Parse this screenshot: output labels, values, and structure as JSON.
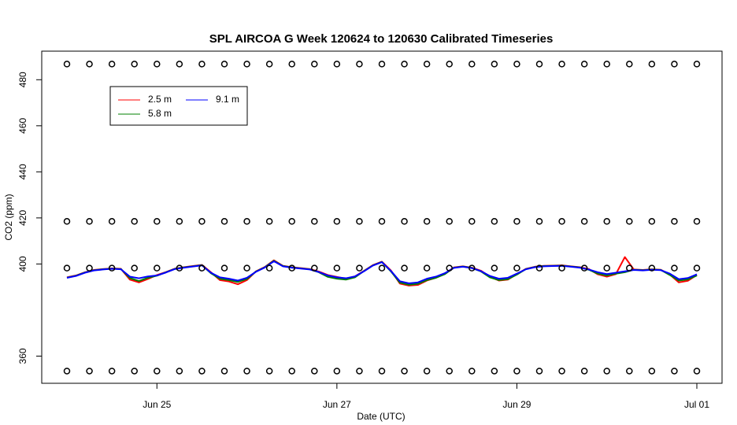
{
  "chart_data": {
    "type": "line",
    "title": "SPL AIRCOA G  Week 120624 to 120630  Calibrated Timeseries",
    "x_label": "Date (UTC)",
    "y_label": "CO2 (ppm)",
    "xlim": [
      23.72,
      31.28
    ],
    "ylim": [
      348.2,
      492.4
    ],
    "xticks": [
      {
        "value": 25,
        "label": "Jun 25"
      },
      {
        "value": 27,
        "label": "Jun 27"
      },
      {
        "value": 29,
        "label": "Jun 29"
      },
      {
        "value": 31,
        "label": "Jul 01"
      }
    ],
    "yticks": [
      360,
      400,
      420,
      440,
      460,
      480
    ],
    "x": [
      24.0,
      24.1,
      24.2,
      24.3,
      24.4,
      24.5,
      24.6,
      24.7,
      24.8,
      24.9,
      25.0,
      25.1,
      25.2,
      25.3,
      25.4,
      25.5,
      25.6,
      25.7,
      25.8,
      25.9,
      26.0,
      26.1,
      26.2,
      26.3,
      26.4,
      26.5,
      26.6,
      26.7,
      26.8,
      26.9,
      27.0,
      27.1,
      27.2,
      27.3,
      27.4,
      27.5,
      27.6,
      27.7,
      27.8,
      27.9,
      28.0,
      28.1,
      28.2,
      28.3,
      28.4,
      28.5,
      28.6,
      28.7,
      28.8,
      28.9,
      29.0,
      29.1,
      29.2,
      29.3,
      29.4,
      29.5,
      29.6,
      29.7,
      29.8,
      29.9,
      30.0,
      30.1,
      30.2,
      30.3,
      30.4,
      30.5,
      30.6,
      30.7,
      30.8,
      30.9,
      31.0
    ],
    "series": [
      {
        "name": "2.5 m",
        "color": "#ff0000",
        "values": [
          394.2,
          395.0,
          396.4,
          397.4,
          397.8,
          398.1,
          397.9,
          393.2,
          392.0,
          393.5,
          395.2,
          396.5,
          398.0,
          398.6,
          399.1,
          399.6,
          396.4,
          393.0,
          392.4,
          391.2,
          393.0,
          396.8,
          398.7,
          401.6,
          399.2,
          398.6,
          398.2,
          397.8,
          396.7,
          395.2,
          394.4,
          393.6,
          394.6,
          397.0,
          399.5,
          401.0,
          397.2,
          391.5,
          390.6,
          390.9,
          392.8,
          394.0,
          395.8,
          398.5,
          399.0,
          398.4,
          397.1,
          394.5,
          392.8,
          393.2,
          395.6,
          397.9,
          398.8,
          399.2,
          399.3,
          399.4,
          399.0,
          398.6,
          397.8,
          395.5,
          394.5,
          395.6,
          403.0,
          397.6,
          397.4,
          397.7,
          397.5,
          395.4,
          392.0,
          392.7,
          395.2
        ]
      },
      {
        "name": "5.8 m",
        "color": "#008000",
        "values": [
          394.1,
          394.9,
          396.3,
          397.3,
          397.7,
          398.0,
          397.8,
          393.9,
          392.6,
          394.0,
          394.9,
          396.4,
          397.9,
          398.5,
          399.0,
          399.5,
          396.0,
          393.6,
          393.0,
          392.2,
          393.5,
          396.7,
          398.6,
          401.4,
          399.1,
          398.5,
          398.1,
          397.7,
          396.4,
          394.4,
          393.6,
          393.2,
          394.2,
          396.9,
          399.4,
          400.9,
          396.8,
          391.9,
          391.0,
          391.4,
          393.0,
          394.0,
          395.6,
          398.4,
          398.9,
          398.3,
          396.8,
          394.2,
          393.0,
          393.4,
          395.4,
          397.8,
          398.7,
          399.1,
          399.2,
          399.3,
          398.9,
          398.5,
          397.5,
          395.8,
          395.0,
          395.8,
          396.4,
          397.5,
          397.3,
          397.6,
          397.4,
          395.2,
          392.8,
          393.3,
          395.0
        ]
      },
      {
        "name": "9.1 m",
        "color": "#0000ff",
        "values": [
          394.0,
          394.8,
          396.2,
          397.2,
          397.6,
          397.9,
          397.7,
          394.5,
          393.8,
          394.6,
          395.0,
          396.3,
          397.8,
          398.4,
          398.9,
          399.4,
          396.2,
          394.2,
          393.6,
          392.8,
          394.0,
          396.6,
          398.5,
          401.2,
          399.0,
          398.4,
          398.0,
          397.6,
          396.5,
          395.0,
          394.2,
          393.8,
          394.6,
          396.8,
          399.3,
          400.8,
          397.0,
          392.5,
          391.6,
          392.0,
          393.6,
          394.5,
          396.0,
          398.3,
          398.8,
          398.2,
          396.9,
          394.8,
          393.6,
          394.0,
          395.8,
          397.7,
          398.6,
          399.0,
          399.1,
          399.2,
          398.8,
          398.4,
          397.6,
          396.4,
          395.6,
          396.2,
          396.8,
          397.4,
          397.2,
          397.5,
          397.3,
          395.8,
          393.4,
          393.9,
          395.5
        ]
      }
    ],
    "points": {
      "color": "#000000",
      "x": [
        24.0,
        24.25,
        24.5,
        24.75,
        25.0,
        25.25,
        25.5,
        25.75,
        26.0,
        26.25,
        26.5,
        26.75,
        27.0,
        27.25,
        27.5,
        27.75,
        28.0,
        28.25,
        28.5,
        28.75,
        29.0,
        29.25,
        29.5,
        29.75,
        30.0,
        30.25,
        30.5,
        30.75,
        31.0
      ],
      "levels": [
        486.8,
        418.5,
        398.2,
        353.5
      ]
    }
  }
}
